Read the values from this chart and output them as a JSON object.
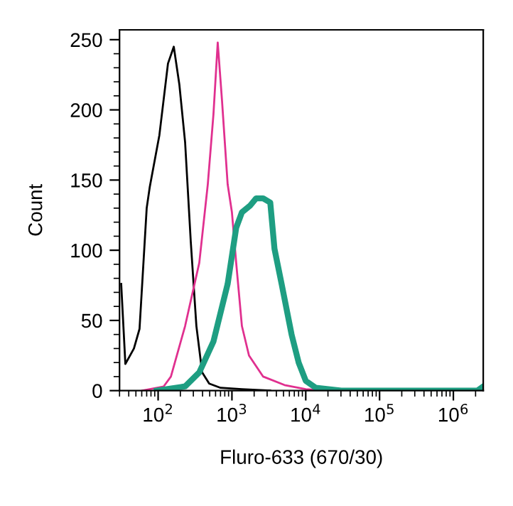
{
  "chart_data": {
    "type": "line",
    "xlabel": "Fluro-633 (670/30)",
    "ylabel": "Count",
    "log": "x",
    "grid": false,
    "legend": false,
    "xlim": [
      30,
      2540000
    ],
    "xticks": [
      {
        "value": 100,
        "label": "10$^{2}$"
      },
      {
        "value": 1000,
        "label": "10$^{3}$"
      },
      {
        "value": 10000,
        "label": "10$^{4}$"
      },
      {
        "value": 100000,
        "label": "10$^{5}$"
      },
      {
        "value": 1000000,
        "label": "10$^{6}$"
      }
    ],
    "ylim": [
      0,
      257
    ],
    "yticks": [
      0,
      50,
      100,
      150,
      200,
      250
    ],
    "line_style": "solid",
    "marker": "none",
    "series": [
      {
        "color": "#000000",
        "x": [
          31.6,
          36,
          47,
          56,
          70,
          77,
          104,
          136,
          163,
          194,
          232,
          277,
          330,
          395,
          492,
          702,
          1365,
          3300
        ],
        "values": [
          76,
          19,
          30,
          44,
          130,
          145,
          182,
          233,
          245,
          218,
          177,
          106,
          46,
          13,
          5,
          2,
          1,
          0
        ]
      },
      {
        "color": "#e0308f",
        "x": [
          61,
          119,
          149,
          232,
          361,
          471,
          562,
          642,
          733,
          875,
          1000,
          1142,
          1365,
          1703,
          2649,
          5157,
          10000,
          19400
        ],
        "values": [
          0,
          3,
          10,
          46,
          91,
          147,
          197,
          248,
          207,
          147,
          127,
          91,
          46,
          25,
          10,
          4,
          1,
          0
        ]
      },
      {
        "color": "#1e9e82",
        "x": [
          96,
          232,
          361,
          562,
          875,
          1142,
          1365,
          1778,
          2124,
          2649,
          3305,
          3772,
          4710,
          6430,
          8020,
          10000,
          13650,
          30300,
          2120000,
          2540000
        ],
        "values": [
          0,
          3,
          13,
          35,
          76,
          116,
          127,
          132,
          137,
          137,
          134,
          101,
          76,
          40,
          20,
          7,
          2,
          0,
          0,
          3
        ]
      }
    ]
  }
}
